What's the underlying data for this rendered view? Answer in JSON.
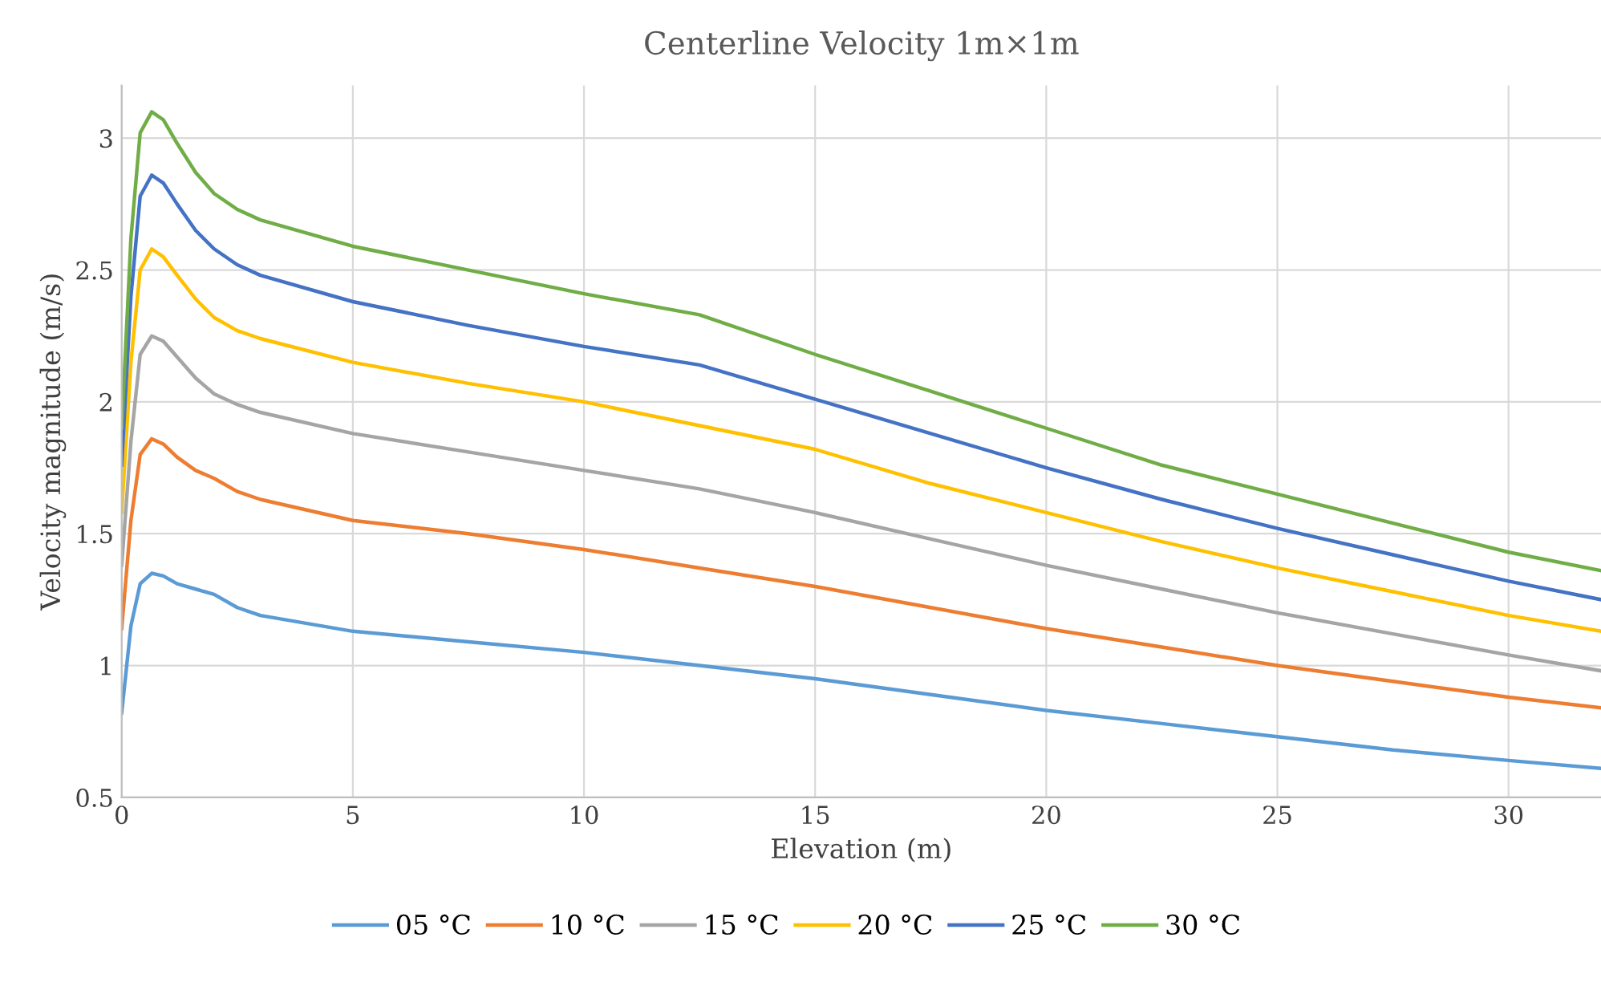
{
  "chart_data": {
    "type": "line",
    "title": "Centerline Velocity 1m×1m",
    "xlabel": "Elevation (m)",
    "ylabel": "Velocity magnitude (m/s)",
    "x": [
      0,
      0.2,
      0.4,
      0.65,
      0.9,
      1.2,
      1.6,
      2,
      2.5,
      3,
      5,
      7.5,
      10,
      12.5,
      15,
      17.5,
      20,
      22.5,
      25,
      27.5,
      30,
      32
    ],
    "series": [
      {
        "name": "05 °C",
        "color": "#5b9bd5",
        "values": [
          0.82,
          1.15,
          1.31,
          1.35,
          1.34,
          1.31,
          1.29,
          1.27,
          1.22,
          1.19,
          1.13,
          1.09,
          1.05,
          1.0,
          0.95,
          0.89,
          0.83,
          0.78,
          0.73,
          0.68,
          0.64,
          0.61
        ]
      },
      {
        "name": "10 °C",
        "color": "#ed7d31",
        "values": [
          1.14,
          1.55,
          1.8,
          1.86,
          1.84,
          1.79,
          1.74,
          1.71,
          1.66,
          1.63,
          1.55,
          1.5,
          1.44,
          1.37,
          1.3,
          1.22,
          1.14,
          1.07,
          1.0,
          0.94,
          0.88,
          0.84
        ]
      },
      {
        "name": "15 °C",
        "color": "#a5a5a5",
        "values": [
          1.38,
          1.85,
          2.18,
          2.25,
          2.23,
          2.17,
          2.09,
          2.03,
          1.99,
          1.96,
          1.88,
          1.81,
          1.74,
          1.67,
          1.58,
          1.48,
          1.38,
          1.29,
          1.2,
          1.12,
          1.04,
          0.98
        ]
      },
      {
        "name": "20 °C",
        "color": "#ffc000",
        "values": [
          1.58,
          2.15,
          2.5,
          2.58,
          2.55,
          2.48,
          2.39,
          2.32,
          2.27,
          2.24,
          2.15,
          2.07,
          2.0,
          1.91,
          1.82,
          1.69,
          1.58,
          1.47,
          1.37,
          1.28,
          1.19,
          1.13
        ]
      },
      {
        "name": "25 °C",
        "color": "#4472c4",
        "values": [
          1.76,
          2.4,
          2.78,
          2.86,
          2.83,
          2.75,
          2.65,
          2.58,
          2.52,
          2.48,
          2.38,
          2.29,
          2.21,
          2.14,
          2.01,
          1.88,
          1.75,
          1.63,
          1.52,
          1.42,
          1.32,
          1.25
        ]
      },
      {
        "name": "30 °C",
        "color": "#70ad47",
        "values": [
          1.9,
          2.62,
          3.02,
          3.1,
          3.07,
          2.98,
          2.87,
          2.79,
          2.73,
          2.69,
          2.59,
          2.5,
          2.41,
          2.33,
          2.18,
          2.04,
          1.9,
          1.76,
          1.65,
          1.54,
          1.43,
          1.36
        ]
      }
    ],
    "xlim": [
      0,
      32
    ],
    "xticks": [
      0,
      5,
      10,
      15,
      20,
      25,
      30
    ],
    "ylim": [
      0.5,
      3.2
    ],
    "yticks": [
      0.5,
      1,
      1.5,
      2,
      2.5,
      3
    ],
    "grid": true,
    "legend": "bottom",
    "marker": "none",
    "line_style": "solid"
  }
}
